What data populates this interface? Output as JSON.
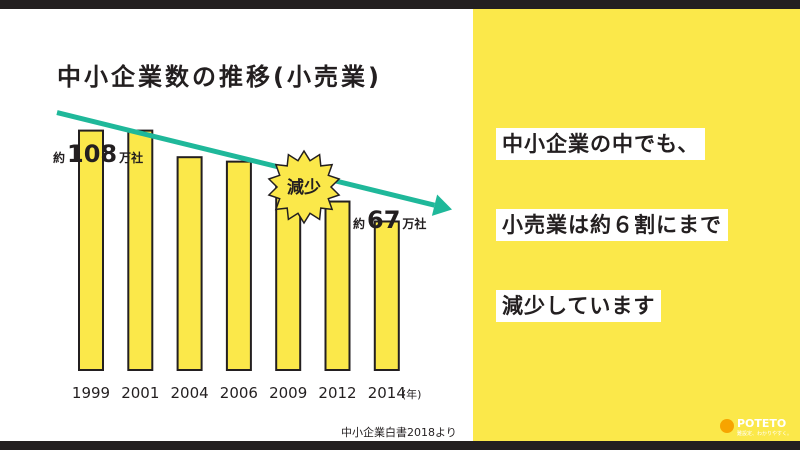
{
  "title": "中小企業数の推移(小売業)",
  "source": "中小企業白書2018より",
  "messages": [
    "中小企業の中でも、",
    "小売業は約６割にまで",
    "減少しています"
  ],
  "brand": {
    "name": "POTETO",
    "tagline": "難設定、わかりやすく。"
  },
  "colors": {
    "accent": "#fbe84a",
    "arrow": "#1fb89a",
    "dark": "#231f20",
    "logo": "#f7a400"
  },
  "chart_data": {
    "type": "bar",
    "categories": [
      "1999",
      "2001",
      "2004",
      "2006",
      "2009",
      "2012",
      "2014"
    ],
    "x_unit": "(年)",
    "values": [
      108,
      108,
      96,
      94,
      86,
      76,
      67
    ],
    "ylim": [
      0,
      120
    ],
    "grid": false,
    "annotations": {
      "start": {
        "prefix": "約",
        "value": "108",
        "unit": "万社"
      },
      "end": {
        "prefix": "約",
        "value": "67",
        "unit": "万社"
      },
      "badge": "減少"
    }
  }
}
